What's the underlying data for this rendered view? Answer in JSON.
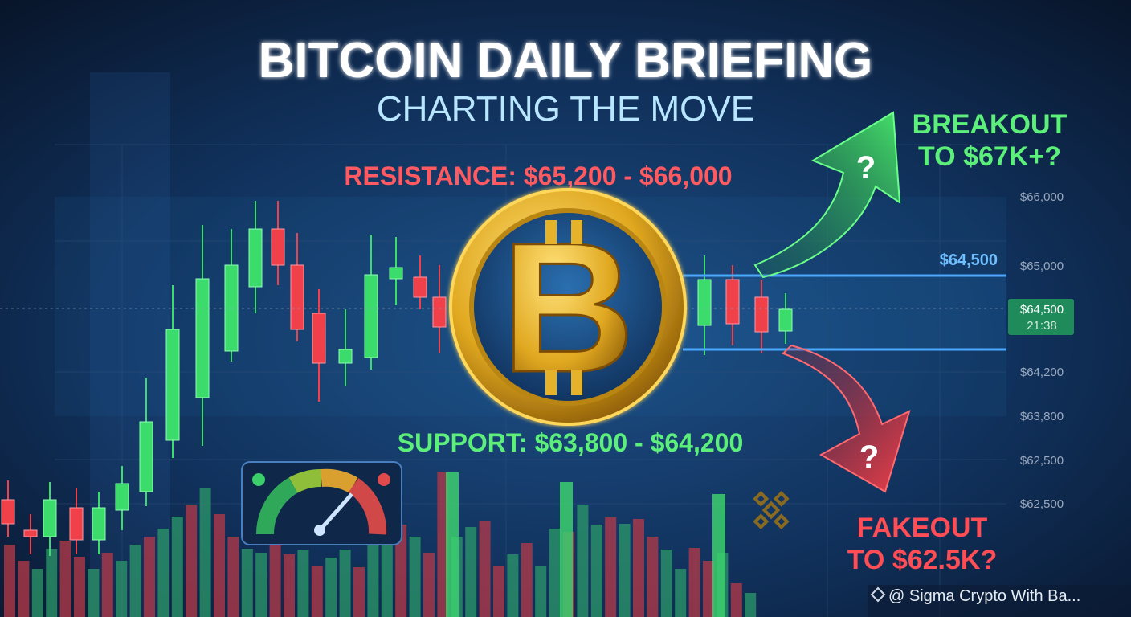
{
  "header": {
    "title": "BITCOIN DAILY BRIEFING",
    "subtitle": "CHARTING THE MOVE"
  },
  "levels": {
    "resistance": "RESISTANCE: $65,200 - $66,000",
    "support": "SUPPORT: $63,800 - $64,200",
    "range_marker": "$64,500"
  },
  "scenarios": {
    "breakout": {
      "lines": [
        "BREAKOUT",
        "TO $67K+?"
      ],
      "mark": "?"
    },
    "fakeout": {
      "lines": [
        "FAKEOUT",
        "TO $62.5K?"
      ],
      "mark": "?"
    }
  },
  "price_axis": {
    "labels": [
      "$66,000",
      "$65,000",
      "$64,200",
      "$63,800",
      "$62,500",
      "$62,500"
    ],
    "current": {
      "price": "$64,500",
      "timer": "21:38"
    }
  },
  "watermark": "@ Sigma Crypto With Ba..."
}
